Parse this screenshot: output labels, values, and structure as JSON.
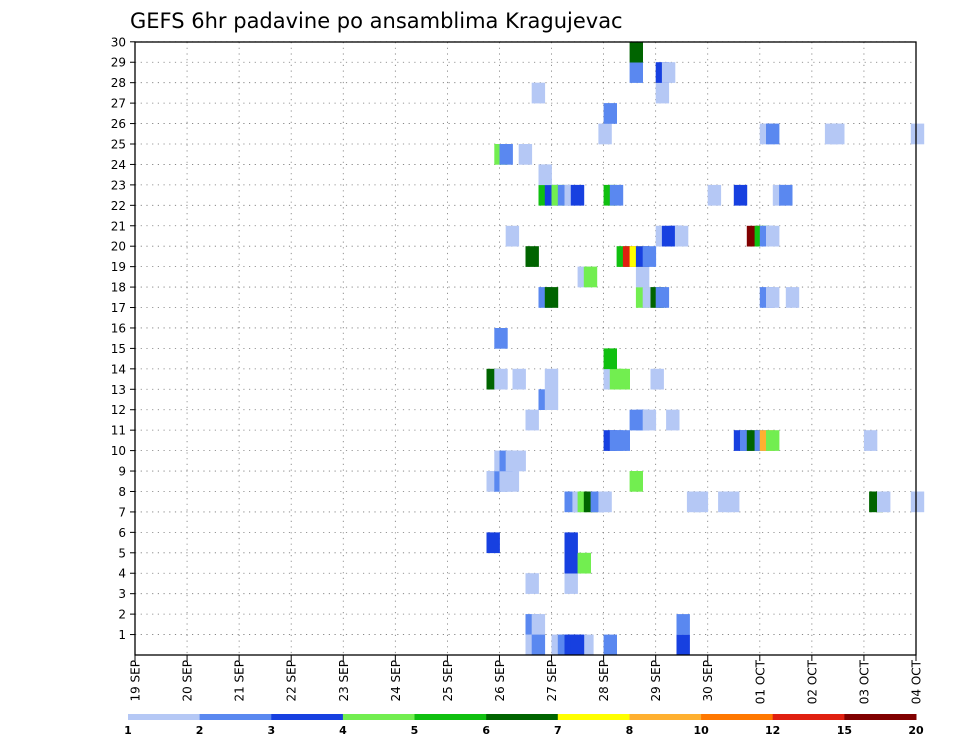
{
  "chart_data": {
    "type": "heatmap",
    "title": "GEFS 6hr padavine po ansamblima Kragujevac",
    "xlabel": "",
    "ylabel": "",
    "y_ticks": [
      "1",
      "2",
      "3",
      "4",
      "5",
      "6",
      "7",
      "8",
      "9",
      "10",
      "11",
      "12",
      "13",
      "14",
      "15",
      "16",
      "17",
      "18",
      "19",
      "20",
      "21",
      "22",
      "23",
      "24",
      "25",
      "26",
      "27",
      "28",
      "29",
      "30"
    ],
    "x_ticks": [
      "19 SEP",
      "20 SEP",
      "21 SEP",
      "22 SEP",
      "23 SEP",
      "24 SEP",
      "25 SEP",
      "26 SEP",
      "27 SEP",
      "28 SEP",
      "29 SEP",
      "30 SEP",
      "01 OCT",
      "02 OCT",
      "03 OCT",
      "04 OCT"
    ],
    "x_range_days": [
      0,
      15
    ],
    "y_range": [
      0,
      30
    ],
    "grid": true,
    "color_levels": [
      "#b5c8f5",
      "#5a88f0",
      "#1740e0",
      "#72ee50",
      "#10c010",
      "#006400",
      "#ffff00",
      "#ffb030",
      "#ff7800",
      "#e02010",
      "#800000"
    ],
    "legend_labels": [
      "1",
      "2",
      "3",
      "4",
      "5",
      "6",
      "7",
      "8",
      "10",
      "12",
      "15",
      "20"
    ],
    "cells": [
      {
        "d": 8.4,
        "m": 0,
        "c": 1
      },
      {
        "d": 8.55,
        "m": 0,
        "c": 1
      },
      {
        "d": 7.5,
        "m": 1,
        "c": 2
      },
      {
        "d": 7.62,
        "m": 1,
        "c": 1
      },
      {
        "d": 8.0,
        "m": 0,
        "c": 1
      },
      {
        "d": 8.12,
        "m": 0,
        "c": 2
      },
      {
        "d": 8.25,
        "m": 0,
        "c": 3
      },
      {
        "d": 8.37,
        "m": 0,
        "c": 3
      },
      {
        "d": 9.0,
        "m": 0,
        "c": 2
      },
      {
        "d": 10.4,
        "m": 0,
        "c": 3
      },
      {
        "d": 7.5,
        "m": 0,
        "c": 1
      },
      {
        "d": 7.62,
        "m": 0,
        "c": 2
      },
      {
        "d": 10.4,
        "m": 1,
        "c": 2
      },
      {
        "d": 7.5,
        "m": 3,
        "c": 1
      },
      {
        "d": 8.25,
        "m": 3,
        "c": 1
      },
      {
        "d": 8.25,
        "m": 4,
        "c": 3
      },
      {
        "d": 8.5,
        "m": 4,
        "c": 4
      },
      {
        "d": 8.25,
        "m": 5,
        "c": 3
      },
      {
        "d": 6.75,
        "m": 5,
        "c": 3
      },
      {
        "d": 8.25,
        "m": 7,
        "c": 2
      },
      {
        "d": 8.4,
        "m": 7,
        "c": 1
      },
      {
        "d": 8.5,
        "m": 7,
        "c": 4
      },
      {
        "d": 8.62,
        "m": 7,
        "c": 6
      },
      {
        "d": 8.75,
        "m": 7,
        "c": 2
      },
      {
        "d": 8.9,
        "m": 7,
        "c": 1
      },
      {
        "d": 10.6,
        "m": 7,
        "c": 1
      },
      {
        "d": 10.75,
        "m": 7,
        "c": 1
      },
      {
        "d": 11.2,
        "m": 7,
        "c": 1
      },
      {
        "d": 11.35,
        "m": 7,
        "c": 1
      },
      {
        "d": 14.1,
        "m": 7,
        "c": 6
      },
      {
        "d": 14.25,
        "m": 7,
        "c": 1
      },
      {
        "d": 14.9,
        "m": 7,
        "c": 1
      },
      {
        "d": 6.75,
        "m": 8,
        "c": 1
      },
      {
        "d": 6.9,
        "m": 8,
        "c": 2
      },
      {
        "d": 7.0,
        "m": 8,
        "c": 1
      },
      {
        "d": 7.12,
        "m": 8,
        "c": 1
      },
      {
        "d": 9.5,
        "m": 8,
        "c": 4
      },
      {
        "d": 6.9,
        "m": 9,
        "c": 1
      },
      {
        "d": 7.0,
        "m": 9,
        "c": 2
      },
      {
        "d": 7.12,
        "m": 9,
        "c": 1
      },
      {
        "d": 7.25,
        "m": 9,
        "c": 1
      },
      {
        "d": 9.0,
        "m": 10,
        "c": 3
      },
      {
        "d": 9.12,
        "m": 10,
        "c": 2
      },
      {
        "d": 9.25,
        "m": 10,
        "c": 2
      },
      {
        "d": 11.5,
        "m": 10,
        "c": 3
      },
      {
        "d": 11.62,
        "m": 10,
        "c": 2
      },
      {
        "d": 11.75,
        "m": 10,
        "c": 6
      },
      {
        "d": 11.9,
        "m": 10,
        "c": 2
      },
      {
        "d": 12.0,
        "m": 10,
        "c": 8
      },
      {
        "d": 12.12,
        "m": 10,
        "c": 4
      },
      {
        "d": 14.0,
        "m": 10,
        "c": 1
      },
      {
        "d": 7.5,
        "m": 11,
        "c": 1
      },
      {
        "d": 9.5,
        "m": 11,
        "c": 2
      },
      {
        "d": 9.62,
        "m": 11,
        "c": 2
      },
      {
        "d": 9.75,
        "m": 11,
        "c": 1
      },
      {
        "d": 10.2,
        "m": 11,
        "c": 1
      },
      {
        "d": 7.75,
        "m": 12,
        "c": 2
      },
      {
        "d": 7.87,
        "m": 12,
        "c": 1
      },
      {
        "d": 6.75,
        "m": 13,
        "c": 6
      },
      {
        "d": 6.9,
        "m": 13,
        "c": 1
      },
      {
        "d": 7.25,
        "m": 13,
        "c": 1
      },
      {
        "d": 7.87,
        "m": 13,
        "c": 1
      },
      {
        "d": 9.0,
        "m": 13,
        "c": 1
      },
      {
        "d": 9.12,
        "m": 13,
        "c": 4
      },
      {
        "d": 9.25,
        "m": 13,
        "c": 4
      },
      {
        "d": 9.9,
        "m": 13,
        "c": 1
      },
      {
        "d": 9.0,
        "m": 14,
        "c": 5
      },
      {
        "d": 6.9,
        "m": 15,
        "c": 2
      },
      {
        "d": 7.75,
        "m": 17,
        "c": 2
      },
      {
        "d": 7.87,
        "m": 17,
        "c": 6
      },
      {
        "d": 9.62,
        "m": 17,
        "c": 4
      },
      {
        "d": 9.75,
        "m": 17,
        "c": 1
      },
      {
        "d": 9.9,
        "m": 17,
        "c": 6
      },
      {
        "d": 10.0,
        "m": 17,
        "c": 2
      },
      {
        "d": 12.0,
        "m": 17,
        "c": 2
      },
      {
        "d": 12.12,
        "m": 17,
        "c": 1
      },
      {
        "d": 12.5,
        "m": 17,
        "c": 1
      },
      {
        "d": 8.5,
        "m": 18,
        "c": 1
      },
      {
        "d": 8.62,
        "m": 18,
        "c": 4
      },
      {
        "d": 9.62,
        "m": 18,
        "c": 1
      },
      {
        "d": 7.5,
        "m": 19,
        "c": 6
      },
      {
        "d": 9.25,
        "m": 19,
        "c": 5
      },
      {
        "d": 9.37,
        "m": 19,
        "c": 10
      },
      {
        "d": 9.5,
        "m": 19,
        "c": 7
      },
      {
        "d": 9.62,
        "m": 19,
        "c": 3
      },
      {
        "d": 9.75,
        "m": 19,
        "c": 2
      },
      {
        "d": 7.12,
        "m": 20,
        "c": 1
      },
      {
        "d": 10.0,
        "m": 20,
        "c": 1
      },
      {
        "d": 10.12,
        "m": 20,
        "c": 3
      },
      {
        "d": 10.25,
        "m": 20,
        "c": 3
      },
      {
        "d": 10.37,
        "m": 20,
        "c": 1
      },
      {
        "d": 11.75,
        "m": 20,
        "c": 11
      },
      {
        "d": 11.9,
        "m": 20,
        "c": 5
      },
      {
        "d": 12.0,
        "m": 20,
        "c": 2
      },
      {
        "d": 12.12,
        "m": 20,
        "c": 1
      },
      {
        "d": 7.75,
        "m": 22,
        "c": 5
      },
      {
        "d": 7.87,
        "m": 22,
        "c": 3
      },
      {
        "d": 8.0,
        "m": 22,
        "c": 4
      },
      {
        "d": 8.12,
        "m": 22,
        "c": 2
      },
      {
        "d": 8.25,
        "m": 22,
        "c": 1
      },
      {
        "d": 8.37,
        "m": 22,
        "c": 3
      },
      {
        "d": 9.0,
        "m": 22,
        "c": 5
      },
      {
        "d": 9.12,
        "m": 22,
        "c": 2
      },
      {
        "d": 11.0,
        "m": 22,
        "c": 1
      },
      {
        "d": 11.5,
        "m": 22,
        "c": 3
      },
      {
        "d": 12.25,
        "m": 22,
        "c": 1
      },
      {
        "d": 12.37,
        "m": 22,
        "c": 2
      },
      {
        "d": 7.75,
        "m": 23,
        "c": 1
      },
      {
        "d": 6.9,
        "m": 24,
        "c": 4
      },
      {
        "d": 7.0,
        "m": 24,
        "c": 2
      },
      {
        "d": 7.37,
        "m": 24,
        "c": 1
      },
      {
        "d": 8.9,
        "m": 25,
        "c": 1
      },
      {
        "d": 12.0,
        "m": 25,
        "c": 1
      },
      {
        "d": 12.12,
        "m": 25,
        "c": 2
      },
      {
        "d": 13.25,
        "m": 25,
        "c": 1
      },
      {
        "d": 13.37,
        "m": 25,
        "c": 1
      },
      {
        "d": 14.9,
        "m": 25,
        "c": 1
      },
      {
        "d": 9.0,
        "m": 26,
        "c": 2
      },
      {
        "d": 7.62,
        "m": 27,
        "c": 1
      },
      {
        "d": 10.0,
        "m": 27,
        "c": 1
      },
      {
        "d": 9.5,
        "m": 28,
        "c": 2
      },
      {
        "d": 10.0,
        "m": 28,
        "c": 3
      },
      {
        "d": 10.12,
        "m": 28,
        "c": 1
      },
      {
        "d": 9.5,
        "m": 29,
        "c": 6
      }
    ]
  }
}
